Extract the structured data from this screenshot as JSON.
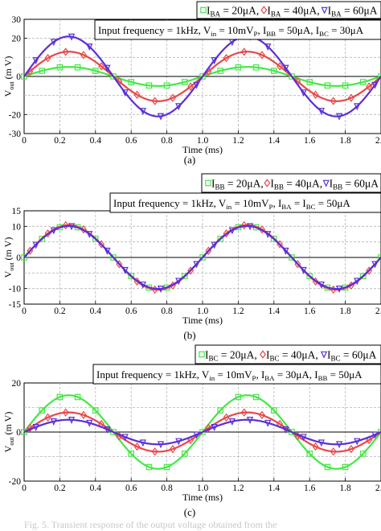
{
  "caption_fragment": "Fig. 5. Transient response of the output voltage obtained from the",
  "chart_data": [
    {
      "type": "line",
      "panel_label": "(a)",
      "xlabel": "Time (ms)",
      "ylabel": "V",
      "ylabel_sub": "out",
      "ylabel_unit": "(m V)",
      "xlim": [
        0,
        2.0
      ],
      "ylim": [
        -30,
        30
      ],
      "xticks": [
        "0",
        "0.2",
        "0.4",
        "0.6",
        "0.8",
        "1.0",
        "1.2",
        "1.4",
        "1.6",
        "1.8",
        "2.0"
      ],
      "yticks": [
        "30",
        "20",
        "0",
        "-20",
        "-30"
      ],
      "grid": true,
      "legend": {
        "parts": [
          {
            "marker": "square",
            "color": "#44e844",
            "text": "I",
            "sub": "BA",
            "value": " = 20μA, "
          },
          {
            "marker": "diamond",
            "color": "#e84848",
            "text": "I",
            "sub": "BA",
            "value": " = 40μA, "
          },
          {
            "marker": "triangle",
            "color": "#5b2fd6",
            "text": "I",
            "sub": "BA",
            "value": " = 60μA"
          }
        ]
      },
      "condition": {
        "parts": [
          {
            "t": "Input frequency = 1kHz, V"
          },
          {
            "sub": "in"
          },
          {
            "t": " = 10mV"
          },
          {
            "sub": "P"
          },
          {
            "t": ", I"
          },
          {
            "sub": "BB"
          },
          {
            "t": " = 50μA, I"
          },
          {
            "sub": "BC"
          },
          {
            "t": " = 30μA"
          }
        ]
      },
      "frequency_khz": 1,
      "series": [
        {
          "name": "IBA = 20μA",
          "color": "#44e844",
          "marker": "square",
          "amplitude_mV": 5
        },
        {
          "name": "IBA = 40μA",
          "color": "#e84848",
          "marker": "diamond",
          "amplitude_mV": 13
        },
        {
          "name": "IBA = 60μA",
          "color": "#5b2fd6",
          "marker": "triangle",
          "amplitude_mV": 21
        }
      ]
    },
    {
      "type": "line",
      "panel_label": "(b)",
      "xlabel": "Time (ms)",
      "ylabel": "V",
      "ylabel_sub": "out",
      "ylabel_unit": "(m V)",
      "xlim": [
        0,
        2.0
      ],
      "ylim": [
        -15,
        15
      ],
      "xticks": [
        "0",
        "0.2",
        "0.4",
        "0.6",
        "0.8",
        "1.0",
        "1.2",
        "1.4",
        "1.6",
        "1.8",
        "2.0"
      ],
      "yticks": [
        "15",
        "10",
        "0",
        "-10",
        "-15"
      ],
      "grid": true,
      "legend": {
        "parts": [
          {
            "marker": "square",
            "color": "#44e844",
            "text": "I",
            "sub": "BB",
            "value": " = 20μA, "
          },
          {
            "marker": "diamond",
            "color": "#e84848",
            "text": "I",
            "sub": "BB",
            "value": " = 40μA, "
          },
          {
            "marker": "triangle",
            "color": "#5b2fd6",
            "text": "I",
            "sub": "BB",
            "value": " = 60μA"
          }
        ]
      },
      "condition": {
        "parts": [
          {
            "t": "Input frequency = 1kHz, V"
          },
          {
            "sub": "in"
          },
          {
            "t": " = 10mV"
          },
          {
            "sub": "P"
          },
          {
            "t": ", I"
          },
          {
            "sub": "BA"
          },
          {
            "t": " = I"
          },
          {
            "sub": "BC"
          },
          {
            "t": " = 50μA"
          }
        ]
      },
      "frequency_khz": 1,
      "series": [
        {
          "name": "IBB = 20μA",
          "color": "#44e844",
          "marker": "square",
          "amplitude_mV": 10.2
        },
        {
          "name": "IBB = 40μA",
          "color": "#e84848",
          "marker": "diamond",
          "amplitude_mV": 10.4
        },
        {
          "name": "IBB = 60μA",
          "color": "#5b2fd6",
          "marker": "triangle",
          "amplitude_mV": 10.1
        }
      ]
    },
    {
      "type": "line",
      "panel_label": "(c)",
      "xlabel": "Time (ms)",
      "ylabel": "V",
      "ylabel_sub": "out",
      "ylabel_unit": "(m V)",
      "xlim": [
        0,
        2.0
      ],
      "ylim": [
        -20,
        20
      ],
      "xticks": [
        "0",
        "0.2",
        "0.4",
        "0.6",
        "0.8",
        "1.0",
        "1.2",
        "1.4",
        "1.6",
        "1.8",
        "2.0"
      ],
      "yticks": [
        "20",
        "0",
        "-20"
      ],
      "grid": true,
      "legend": {
        "parts": [
          {
            "marker": "square",
            "color": "#44e844",
            "text": "I",
            "sub": "BC",
            "value": " = 20μA, "
          },
          {
            "marker": "diamond",
            "color": "#e84848",
            "text": "I",
            "sub": "BC",
            "value": " = 40μA, "
          },
          {
            "marker": "triangle",
            "color": "#5b2fd6",
            "text": "I",
            "sub": "BC",
            "value": " = 60μA"
          }
        ]
      },
      "condition": {
        "parts": [
          {
            "t": "Input frequency = 1kHz, V"
          },
          {
            "sub": "in"
          },
          {
            "t": " = 10mV"
          },
          {
            "sub": "P"
          },
          {
            "t": ", I"
          },
          {
            "sub": "BA"
          },
          {
            "t": " = 30μA, I"
          },
          {
            "sub": "BB"
          },
          {
            "t": " = 50μA"
          }
        ]
      },
      "frequency_khz": 1,
      "series": [
        {
          "name": "IBC = 20μA",
          "color": "#44e844",
          "marker": "square",
          "amplitude_mV": 15
        },
        {
          "name": "IBC = 40μA",
          "color": "#e84848",
          "marker": "diamond",
          "amplitude_mV": 8
        },
        {
          "name": "IBC = 60μA",
          "color": "#5b2fd6",
          "marker": "triangle",
          "amplitude_mV": 5
        }
      ]
    }
  ]
}
